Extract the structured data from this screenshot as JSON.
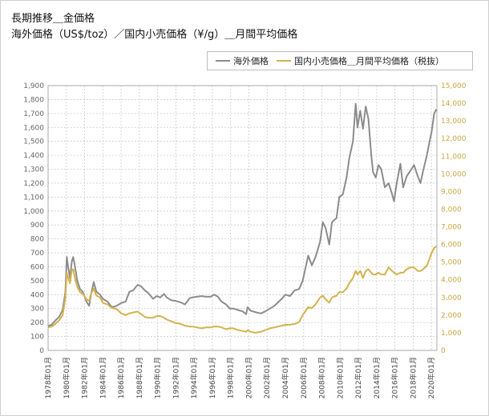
{
  "title_line1": "長期推移＿金価格",
  "title_line2": "海外価格（US$/toz）／国内小売価格（¥/g）＿月間平均価格",
  "colors": {
    "overseas": "#8c8c8c",
    "domestic": "#d4b24c",
    "grid": "#cccccc",
    "left_axis_text": "#666666",
    "right_axis_text": "#c9a640"
  },
  "chart_data": {
    "type": "line",
    "legend": {
      "position": "top-right",
      "entries": [
        "海外価格",
        "国内小売価格＿月間平均価格（税抜）"
      ]
    },
    "grid": true,
    "y_left": {
      "min": 0,
      "max": 1900,
      "step": 100,
      "tick_labels": [
        "0",
        "100",
        "200",
        "300",
        "400",
        "500",
        "600",
        "700",
        "800",
        "900",
        "1,000",
        "1,100",
        "1,200",
        "1,300",
        "1,400",
        "1,500",
        "1,600",
        "1,700",
        "1,800",
        "1,900"
      ]
    },
    "y_right": {
      "min": 0,
      "max": 15000,
      "step": 1000,
      "tick_labels": [
        "0",
        "1,000",
        "2,000",
        "3,000",
        "4,000",
        "5,000",
        "6,000",
        "7,000",
        "8,000",
        "9,000",
        "10,000",
        "11,000",
        "12,000",
        "13,000",
        "14,000",
        "15,000"
      ]
    },
    "x_range": [
      1978,
      2020.6
    ],
    "x_ticks": [
      {
        "x": 1978,
        "label": "1978年01月"
      },
      {
        "x": 1980,
        "label": "1980年01月"
      },
      {
        "x": 1982,
        "label": "1982年01月"
      },
      {
        "x": 1984,
        "label": "1984年01月"
      },
      {
        "x": 1986,
        "label": "1986年01月"
      },
      {
        "x": 1988,
        "label": "1988年01月"
      },
      {
        "x": 1990,
        "label": "1990年01月"
      },
      {
        "x": 1992,
        "label": "1992年01月"
      },
      {
        "x": 1994,
        "label": "1994年01月"
      },
      {
        "x": 1996,
        "label": "1996年01月"
      },
      {
        "x": 1998,
        "label": "1998年01月"
      },
      {
        "x": 2000,
        "label": "2000年01月"
      },
      {
        "x": 2002,
        "label": "2002年01月"
      },
      {
        "x": 2004,
        "label": "2004年01月"
      },
      {
        "x": 2006,
        "label": "2006年01月"
      },
      {
        "x": 2008,
        "label": "2008年01月"
      },
      {
        "x": 2010,
        "label": "2010年01月"
      },
      {
        "x": 2012,
        "label": "2012年01月"
      },
      {
        "x": 2014,
        "label": "2014年01月"
      },
      {
        "x": 2016,
        "label": "2016年01月"
      },
      {
        "x": 2018,
        "label": "2018年01月"
      },
      {
        "x": 2020,
        "label": "2020年01月"
      }
    ],
    "series": [
      {
        "name": "海外価格",
        "axis": "left",
        "color": "#8c8c8c",
        "points": [
          [
            1978.0,
            175
          ],
          [
            1978.4,
            185
          ],
          [
            1978.8,
            215
          ],
          [
            1979.2,
            240
          ],
          [
            1979.6,
            290
          ],
          [
            1979.9,
            420
          ],
          [
            1980.05,
            670
          ],
          [
            1980.2,
            600
          ],
          [
            1980.4,
            520
          ],
          [
            1980.6,
            640
          ],
          [
            1980.75,
            670
          ],
          [
            1980.9,
            620
          ],
          [
            1981.2,
            500
          ],
          [
            1981.5,
            440
          ],
          [
            1981.8,
            420
          ],
          [
            1982.2,
            350
          ],
          [
            1982.5,
            320
          ],
          [
            1982.7,
            400
          ],
          [
            1983.0,
            490
          ],
          [
            1983.3,
            420
          ],
          [
            1983.7,
            400
          ],
          [
            1984.0,
            370
          ],
          [
            1984.5,
            350
          ],
          [
            1985.0,
            310
          ],
          [
            1985.5,
            320
          ],
          [
            1986.0,
            340
          ],
          [
            1986.5,
            350
          ],
          [
            1986.9,
            420
          ],
          [
            1987.3,
            430
          ],
          [
            1987.8,
            470
          ],
          [
            1988.2,
            460
          ],
          [
            1988.6,
            430
          ],
          [
            1989.0,
            410
          ],
          [
            1989.5,
            370
          ],
          [
            1989.9,
            390
          ],
          [
            1990.3,
            380
          ],
          [
            1990.7,
            405
          ],
          [
            1991.0,
            380
          ],
          [
            1991.5,
            360
          ],
          [
            1992.0,
            355
          ],
          [
            1992.5,
            345
          ],
          [
            1993.0,
            330
          ],
          [
            1993.5,
            375
          ],
          [
            1993.8,
            380
          ],
          [
            1994.3,
            385
          ],
          [
            1994.8,
            390
          ],
          [
            1995.3,
            385
          ],
          [
            1995.8,
            385
          ],
          [
            1996.2,
            400
          ],
          [
            1996.6,
            385
          ],
          [
            1997.0,
            350
          ],
          [
            1997.5,
            330
          ],
          [
            1997.9,
            300
          ],
          [
            1998.3,
            300
          ],
          [
            1998.8,
            290
          ],
          [
            1999.3,
            280
          ],
          [
            1999.7,
            260
          ],
          [
            1999.85,
            310
          ],
          [
            2000.2,
            285
          ],
          [
            2000.7,
            275
          ],
          [
            2001.3,
            265
          ],
          [
            2001.8,
            280
          ],
          [
            2002.3,
            300
          ],
          [
            2002.8,
            320
          ],
          [
            2003.2,
            345
          ],
          [
            2003.6,
            370
          ],
          [
            2004.0,
            400
          ],
          [
            2004.5,
            390
          ],
          [
            2005.0,
            430
          ],
          [
            2005.5,
            440
          ],
          [
            2005.9,
            500
          ],
          [
            2006.3,
            620
          ],
          [
            2006.5,
            680
          ],
          [
            2006.9,
            610
          ],
          [
            2007.3,
            670
          ],
          [
            2007.8,
            780
          ],
          [
            2008.1,
            920
          ],
          [
            2008.4,
            880
          ],
          [
            2008.8,
            760
          ],
          [
            2009.1,
            920
          ],
          [
            2009.6,
            950
          ],
          [
            2009.9,
            1100
          ],
          [
            2010.3,
            1120
          ],
          [
            2010.7,
            1240
          ],
          [
            2011.0,
            1380
          ],
          [
            2011.4,
            1500
          ],
          [
            2011.7,
            1770
          ],
          [
            2011.9,
            1600
          ],
          [
            2012.2,
            1720
          ],
          [
            2012.5,
            1590
          ],
          [
            2012.8,
            1750
          ],
          [
            2013.1,
            1660
          ],
          [
            2013.4,
            1410
          ],
          [
            2013.6,
            1280
          ],
          [
            2013.9,
            1240
          ],
          [
            2014.2,
            1330
          ],
          [
            2014.5,
            1300
          ],
          [
            2014.9,
            1170
          ],
          [
            2015.3,
            1200
          ],
          [
            2015.7,
            1120
          ],
          [
            2015.9,
            1070
          ],
          [
            2016.2,
            1200
          ],
          [
            2016.6,
            1340
          ],
          [
            2016.9,
            1170
          ],
          [
            2017.3,
            1250
          ],
          [
            2017.7,
            1290
          ],
          [
            2018.1,
            1330
          ],
          [
            2018.5,
            1250
          ],
          [
            2018.8,
            1200
          ],
          [
            2019.1,
            1290
          ],
          [
            2019.5,
            1400
          ],
          [
            2019.8,
            1500
          ],
          [
            2020.0,
            1560
          ],
          [
            2020.3,
            1700
          ],
          [
            2020.55,
            1730
          ]
        ]
      },
      {
        "name": "国内小売価格＿月間平均価格（税抜）",
        "axis": "right",
        "color": "#d4b24c",
        "points": [
          [
            1978.0,
            1300
          ],
          [
            1978.4,
            1350
          ],
          [
            1978.8,
            1500
          ],
          [
            1979.2,
            1700
          ],
          [
            1979.6,
            2000
          ],
          [
            1979.9,
            3000
          ],
          [
            1980.05,
            4400
          ],
          [
            1980.2,
            4100
          ],
          [
            1980.4,
            3800
          ],
          [
            1980.6,
            4550
          ],
          [
            1980.75,
            4600
          ],
          [
            1980.9,
            4200
          ],
          [
            1981.2,
            3600
          ],
          [
            1981.5,
            3300
          ],
          [
            1981.8,
            3200
          ],
          [
            1982.2,
            2900
          ],
          [
            1982.5,
            2800
          ],
          [
            1982.7,
            3200
          ],
          [
            1983.0,
            3500
          ],
          [
            1983.3,
            3100
          ],
          [
            1983.7,
            3000
          ],
          [
            1984.0,
            2700
          ],
          [
            1984.5,
            2600
          ],
          [
            1985.0,
            2400
          ],
          [
            1985.5,
            2350
          ],
          [
            1986.0,
            2100
          ],
          [
            1986.5,
            2000
          ],
          [
            1986.9,
            2100
          ],
          [
            1987.3,
            2150
          ],
          [
            1987.8,
            2200
          ],
          [
            1988.2,
            2050
          ],
          [
            1988.6,
            1900
          ],
          [
            1989.0,
            1850
          ],
          [
            1989.5,
            1850
          ],
          [
            1989.9,
            1950
          ],
          [
            1990.3,
            1950
          ],
          [
            1990.7,
            1850
          ],
          [
            1991.0,
            1750
          ],
          [
            1991.5,
            1650
          ],
          [
            1992.0,
            1550
          ],
          [
            1992.5,
            1500
          ],
          [
            1993.0,
            1400
          ],
          [
            1993.5,
            1350
          ],
          [
            1993.8,
            1350
          ],
          [
            1994.3,
            1300
          ],
          [
            1994.8,
            1250
          ],
          [
            1995.3,
            1300
          ],
          [
            1995.8,
            1300
          ],
          [
            1996.2,
            1350
          ],
          [
            1996.6,
            1350
          ],
          [
            1997.0,
            1300
          ],
          [
            1997.5,
            1200
          ],
          [
            1997.9,
            1250
          ],
          [
            1998.3,
            1250
          ],
          [
            1998.8,
            1150
          ],
          [
            1999.3,
            1100
          ],
          [
            1999.7,
            1050
          ],
          [
            1999.85,
            1150
          ],
          [
            2000.2,
            1050
          ],
          [
            2000.7,
            1000
          ],
          [
            2001.3,
            1050
          ],
          [
            2001.8,
            1150
          ],
          [
            2002.3,
            1250
          ],
          [
            2002.8,
            1300
          ],
          [
            2003.2,
            1350
          ],
          [
            2003.6,
            1400
          ],
          [
            2004.0,
            1450
          ],
          [
            2004.5,
            1450
          ],
          [
            2005.0,
            1500
          ],
          [
            2005.5,
            1600
          ],
          [
            2005.9,
            2000
          ],
          [
            2006.3,
            2300
          ],
          [
            2006.5,
            2450
          ],
          [
            2006.9,
            2400
          ],
          [
            2007.3,
            2600
          ],
          [
            2007.8,
            3000
          ],
          [
            2008.1,
            3100
          ],
          [
            2008.4,
            2900
          ],
          [
            2008.8,
            2700
          ],
          [
            2009.1,
            3000
          ],
          [
            2009.6,
            3100
          ],
          [
            2009.9,
            3300
          ],
          [
            2010.3,
            3300
          ],
          [
            2010.7,
            3500
          ],
          [
            2011.0,
            3800
          ],
          [
            2011.4,
            4100
          ],
          [
            2011.7,
            4500
          ],
          [
            2011.9,
            4300
          ],
          [
            2012.2,
            4500
          ],
          [
            2012.5,
            4100
          ],
          [
            2012.8,
            4500
          ],
          [
            2013.1,
            4600
          ],
          [
            2013.4,
            4400
          ],
          [
            2013.6,
            4300
          ],
          [
            2013.9,
            4300
          ],
          [
            2014.2,
            4400
          ],
          [
            2014.5,
            4300
          ],
          [
            2014.9,
            4300
          ],
          [
            2015.3,
            4700
          ],
          [
            2015.7,
            4500
          ],
          [
            2015.9,
            4400
          ],
          [
            2016.2,
            4300
          ],
          [
            2016.6,
            4400
          ],
          [
            2016.9,
            4400
          ],
          [
            2017.3,
            4600
          ],
          [
            2017.7,
            4700
          ],
          [
            2018.1,
            4700
          ],
          [
            2018.5,
            4500
          ],
          [
            2018.8,
            4500
          ],
          [
            2019.1,
            4600
          ],
          [
            2019.5,
            4800
          ],
          [
            2019.8,
            5200
          ],
          [
            2020.0,
            5500
          ],
          [
            2020.3,
            5800
          ],
          [
            2020.55,
            5900
          ]
        ]
      }
    ]
  }
}
